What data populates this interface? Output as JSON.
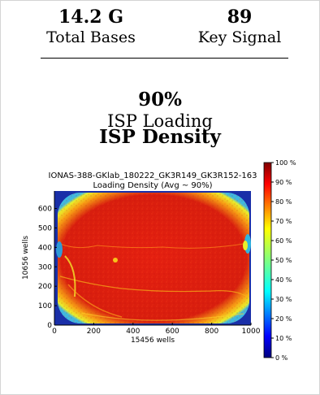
{
  "stats": {
    "total_bases": {
      "value": "14.2 G",
      "label": "Total Bases"
    },
    "key_signal": {
      "value": "89",
      "label": "Key Signal"
    },
    "isp_loading": {
      "value": "90%",
      "label": "ISP Loading"
    }
  },
  "section_title": "ISP Density",
  "chart_data": {
    "type": "heatmap",
    "title_line1": "IONAS-388-GKlab_180222_GK3R149_GK3R152-163",
    "title_line2": "Loading Density (Avg ~ 90%)",
    "xlabel": "15456 wells",
    "ylabel": "10656 wells",
    "xlim": [
      0,
      1000
    ],
    "ylim": [
      0,
      690
    ],
    "x_ticks": [
      "0",
      "200",
      "400",
      "600",
      "800",
      "1000"
    ],
    "x_tick_values": [
      0,
      200,
      400,
      600,
      800,
      1000
    ],
    "y_ticks": [
      "0",
      "100",
      "200",
      "300",
      "400",
      "500",
      "600"
    ],
    "y_tick_values": [
      0,
      100,
      200,
      300,
      400,
      500,
      600
    ],
    "colorbar": {
      "range": [
        0,
        100
      ],
      "ticks": [
        "0 %",
        "10 %",
        "20 %",
        "30 %",
        "40 %",
        "50 %",
        "60 %",
        "70 %",
        "80 %",
        "90 %",
        "100 %"
      ],
      "tick_values": [
        0,
        10,
        20,
        30,
        40,
        50,
        60,
        70,
        80,
        90,
        100
      ],
      "colormap": "jet"
    },
    "average_density_percent": 90
  }
}
